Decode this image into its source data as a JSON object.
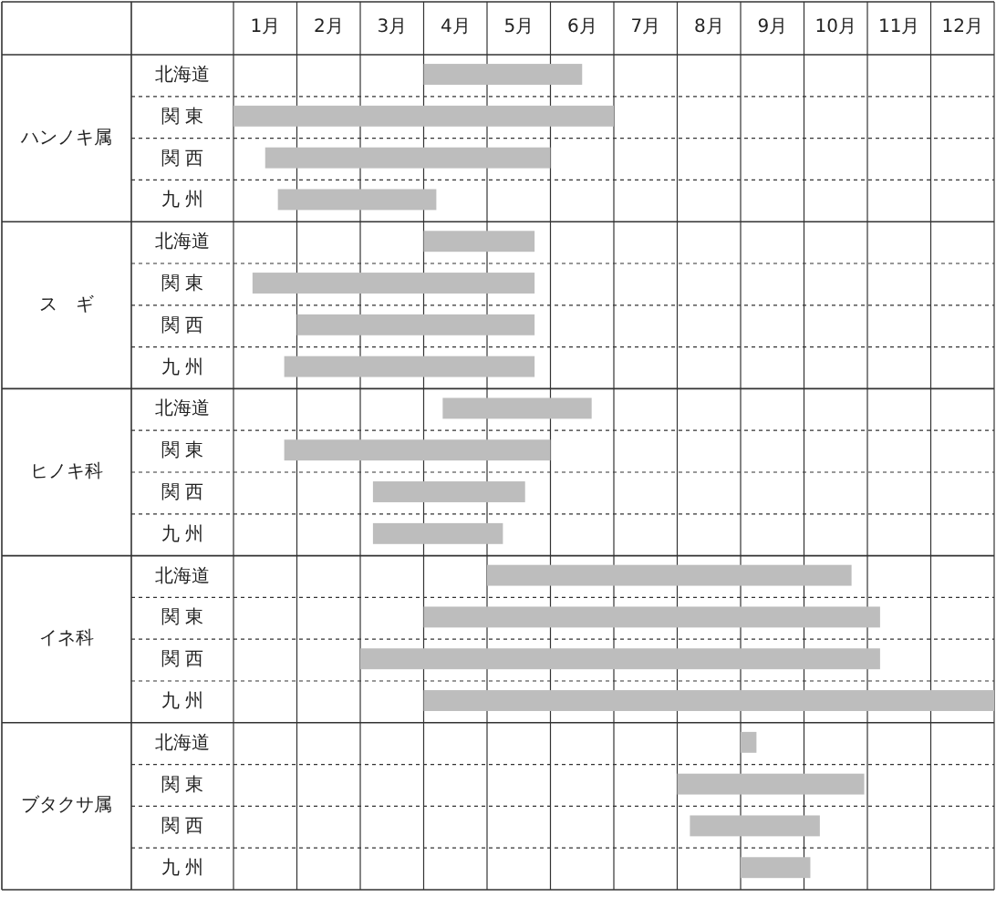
{
  "chart_data": {
    "type": "bar",
    "orientation": "horizontal",
    "grid": true,
    "categories": [
      "北海道",
      "関 東",
      "関 西",
      "九 州",
      "北海道",
      "関 東",
      "関 西",
      "九 州",
      "北海道",
      "関 東",
      "関 西",
      "九 州",
      "北海道",
      "関 東",
      "関 西",
      "九 州",
      "北海道",
      "関 東",
      "関 西",
      "九 州"
    ],
    "xlim": [
      0,
      12
    ],
    "xticks": [
      {
        "value": 0.5,
        "label": "1月"
      },
      {
        "value": 1.5,
        "label": "2月"
      },
      {
        "value": 2.5,
        "label": "3月"
      },
      {
        "value": 3.5,
        "label": "4月"
      },
      {
        "value": 4.5,
        "label": "5月"
      },
      {
        "value": 5.5,
        "label": "6月"
      },
      {
        "value": 6.5,
        "label": "7月"
      },
      {
        "value": 7.5,
        "label": "8月"
      },
      {
        "value": 8.5,
        "label": "9月"
      },
      {
        "value": 9.5,
        "label": "10月"
      },
      {
        "value": 10.5,
        "label": "11月"
      },
      {
        "value": 11.5,
        "label": "12月"
      }
    ],
    "base": [
      3.0,
      0,
      0.5,
      0.7,
      3.0,
      0.3,
      1.0,
      0.8,
      3.3,
      0.8,
      2.2,
      2.2,
      4.0,
      3.0,
      2.0,
      3.0,
      8.0,
      7.0,
      7.2,
      8.0
    ],
    "values": [
      2.5,
      6.0,
      4.5,
      2.5,
      1.75,
      4.45,
      3.75,
      3.95,
      2.35,
      4.2,
      2.4,
      2.05,
      5.75,
      7.2,
      8.2,
      9.0,
      0.25,
      2.95,
      2.05,
      1.1
    ],
    "color": "#bdbdbd",
    "annotations": [
      "ハンノキ属",
      "ス　ギ",
      "ヒノキ科",
      "イネ科",
      "ブタクサ属"
    ]
  }
}
